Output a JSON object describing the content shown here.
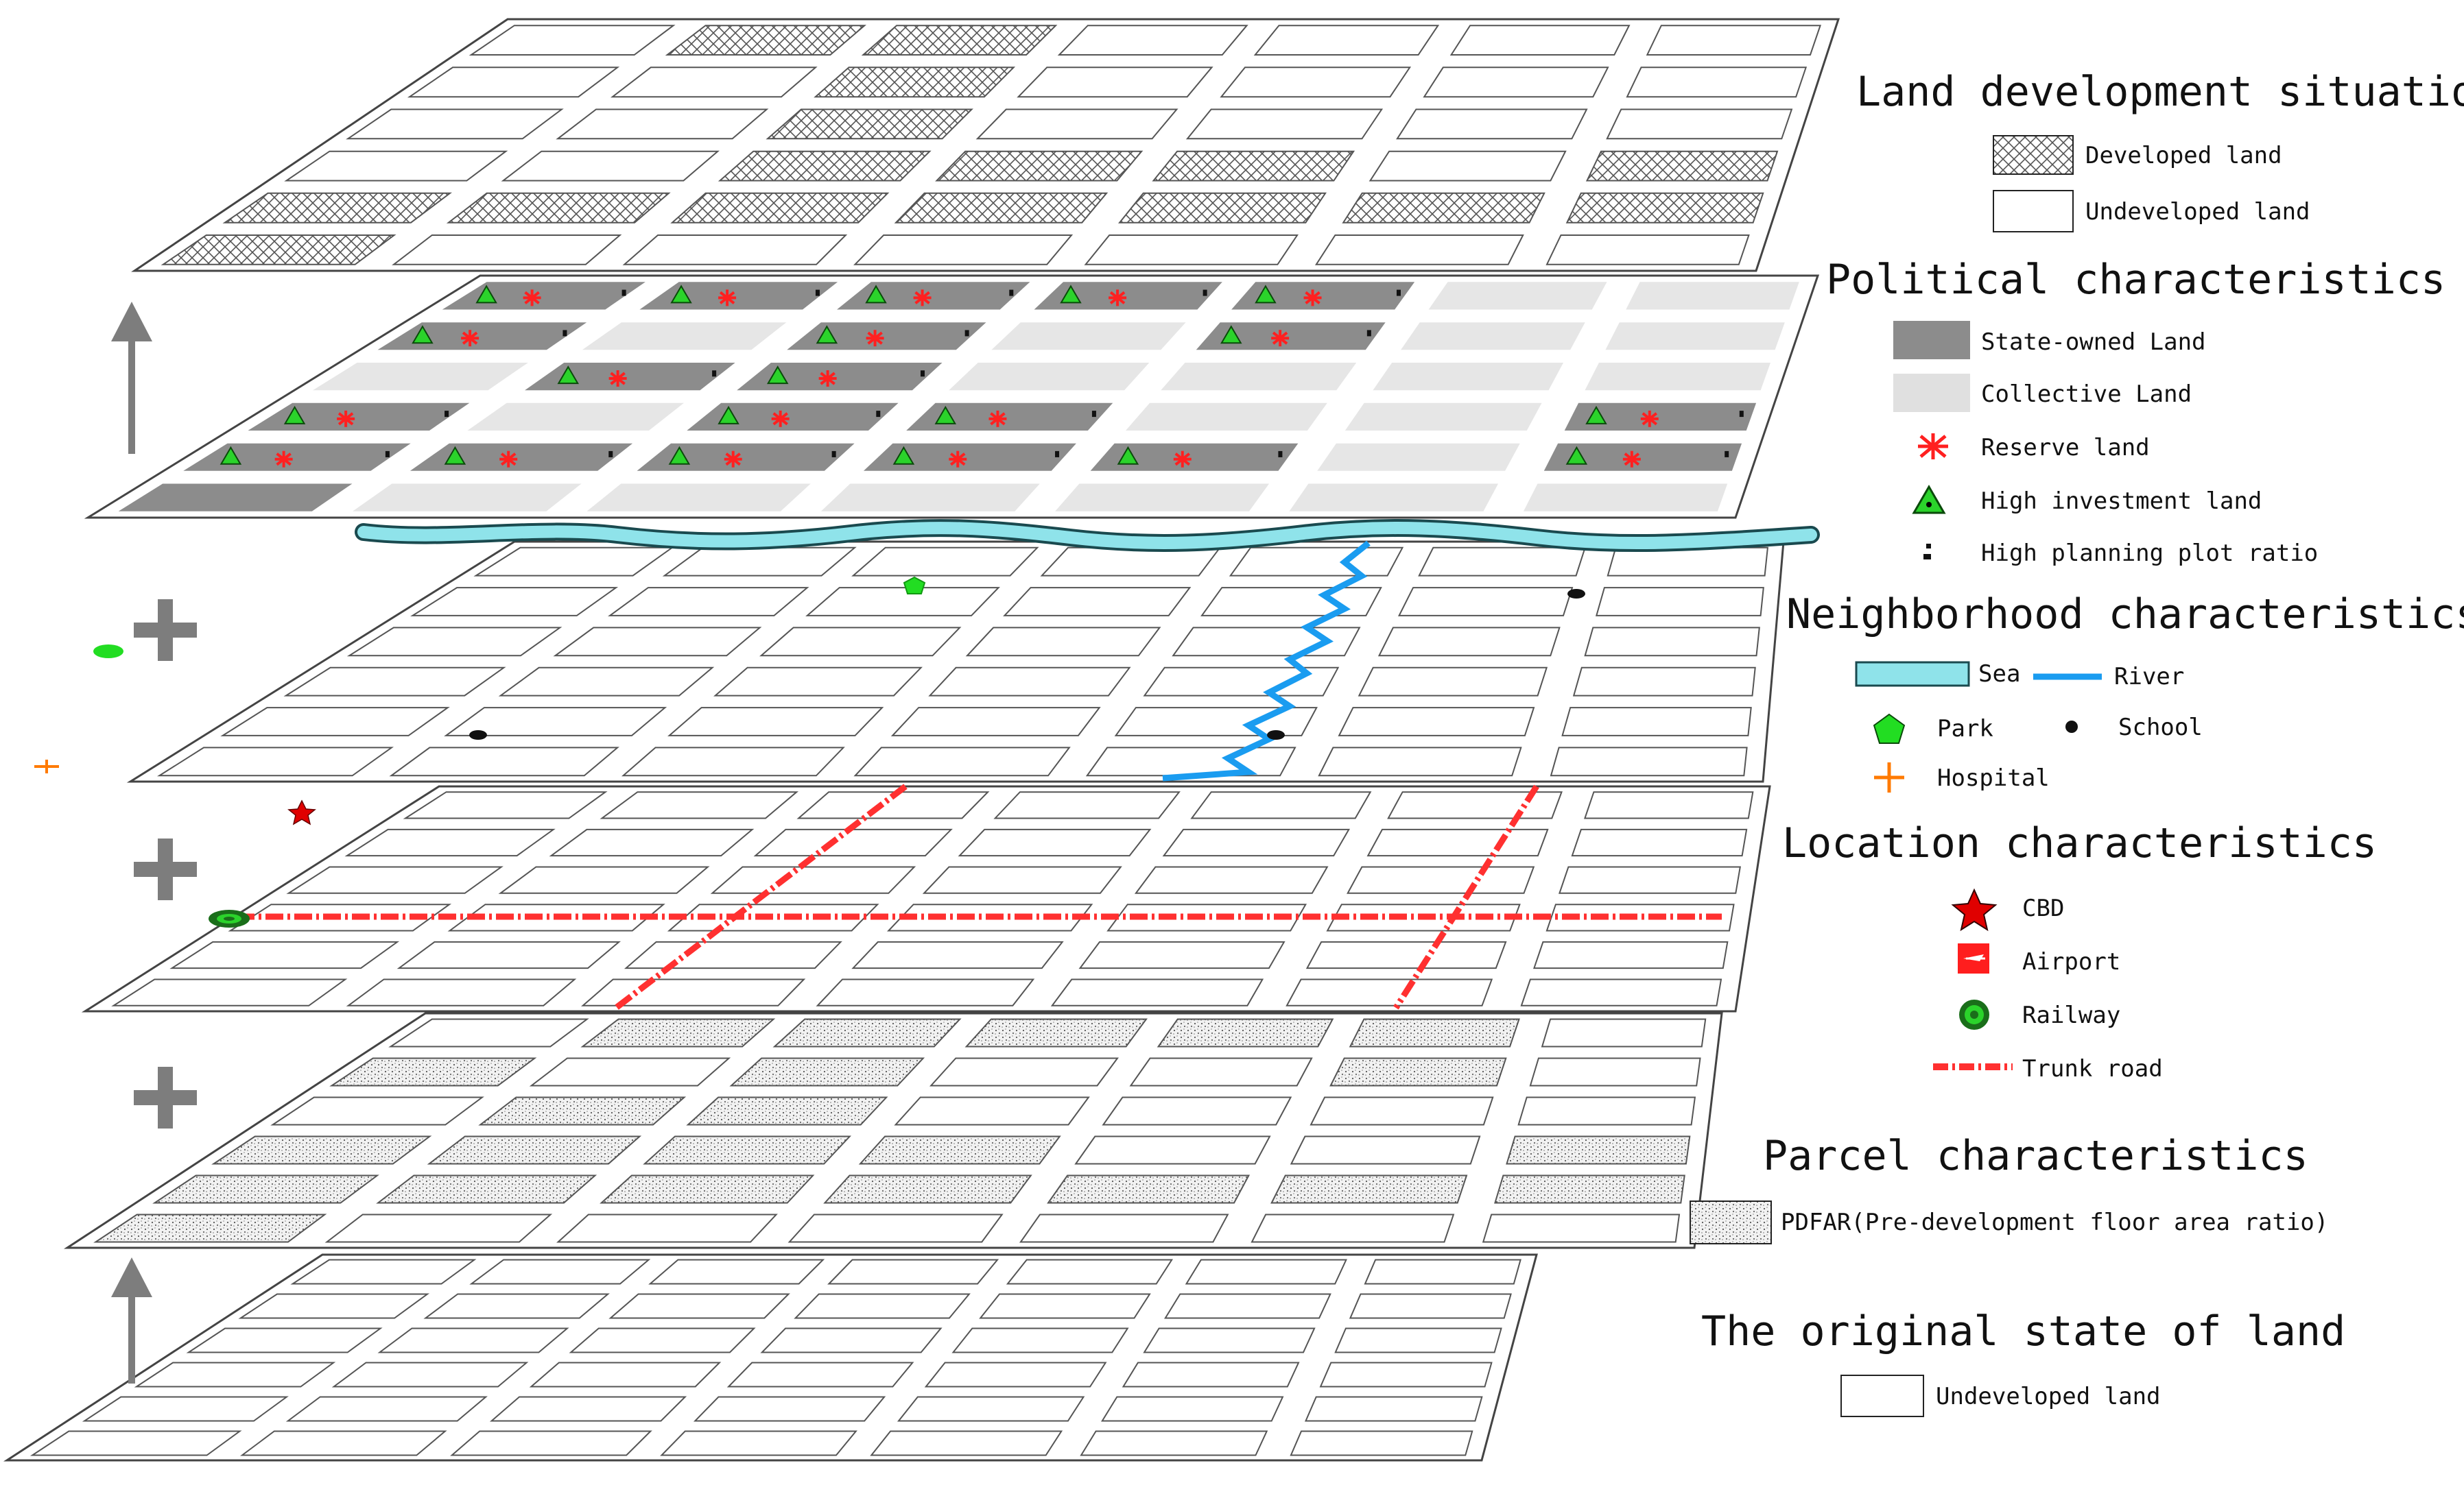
{
  "layers": [
    {
      "key": "development",
      "label": "Land development situation"
    },
    {
      "key": "political",
      "label": "Political characteristics"
    },
    {
      "key": "neighborhood",
      "label": "Neighborhood characteristics"
    },
    {
      "key": "location",
      "label": "Location characteristics"
    },
    {
      "key": "parcel",
      "label": "Parcel characteristics"
    },
    {
      "key": "original",
      "label": "The original state of land"
    }
  ],
  "legend": {
    "development": {
      "title": "Land development situation",
      "developed": "Developed land",
      "undeveloped": "Undeveloped land"
    },
    "political": {
      "title": "Political characteristics",
      "state_owned": "State-owned Land",
      "collective": "Collective Land",
      "reserve": "Reserve land",
      "high_investment": "High investment land",
      "high_ratio": "High planning plot ratio"
    },
    "neighborhood": {
      "title": "Neighborhood characteristics",
      "sea": "Sea",
      "river": "River",
      "park": "Park",
      "school": "School",
      "hospital": "Hospital"
    },
    "location": {
      "title": "Location characteristics",
      "cbd": "CBD",
      "airport": "Airport",
      "railway": "Railway",
      "trunk_road": "Trunk road"
    },
    "parcel": {
      "title": "Parcel characteristics",
      "pdfar": "PDFAR(Pre-development floor area ratio)"
    },
    "original": {
      "title": "The original state of land",
      "undeveloped": "Undeveloped land"
    }
  },
  "colors": {
    "state_owned": "#8c8c8c",
    "collective": "#e6e6e6",
    "reserve": "#ff2020",
    "high_investment": "#2bd32b",
    "sea": "#8fe3ea",
    "river": "#1a9cf0",
    "park": "#22dd22",
    "hospital": "#ff7a00",
    "cbd": "#e00000",
    "trunk_road": "#ff3030",
    "arrow": "#7d7d7d"
  }
}
